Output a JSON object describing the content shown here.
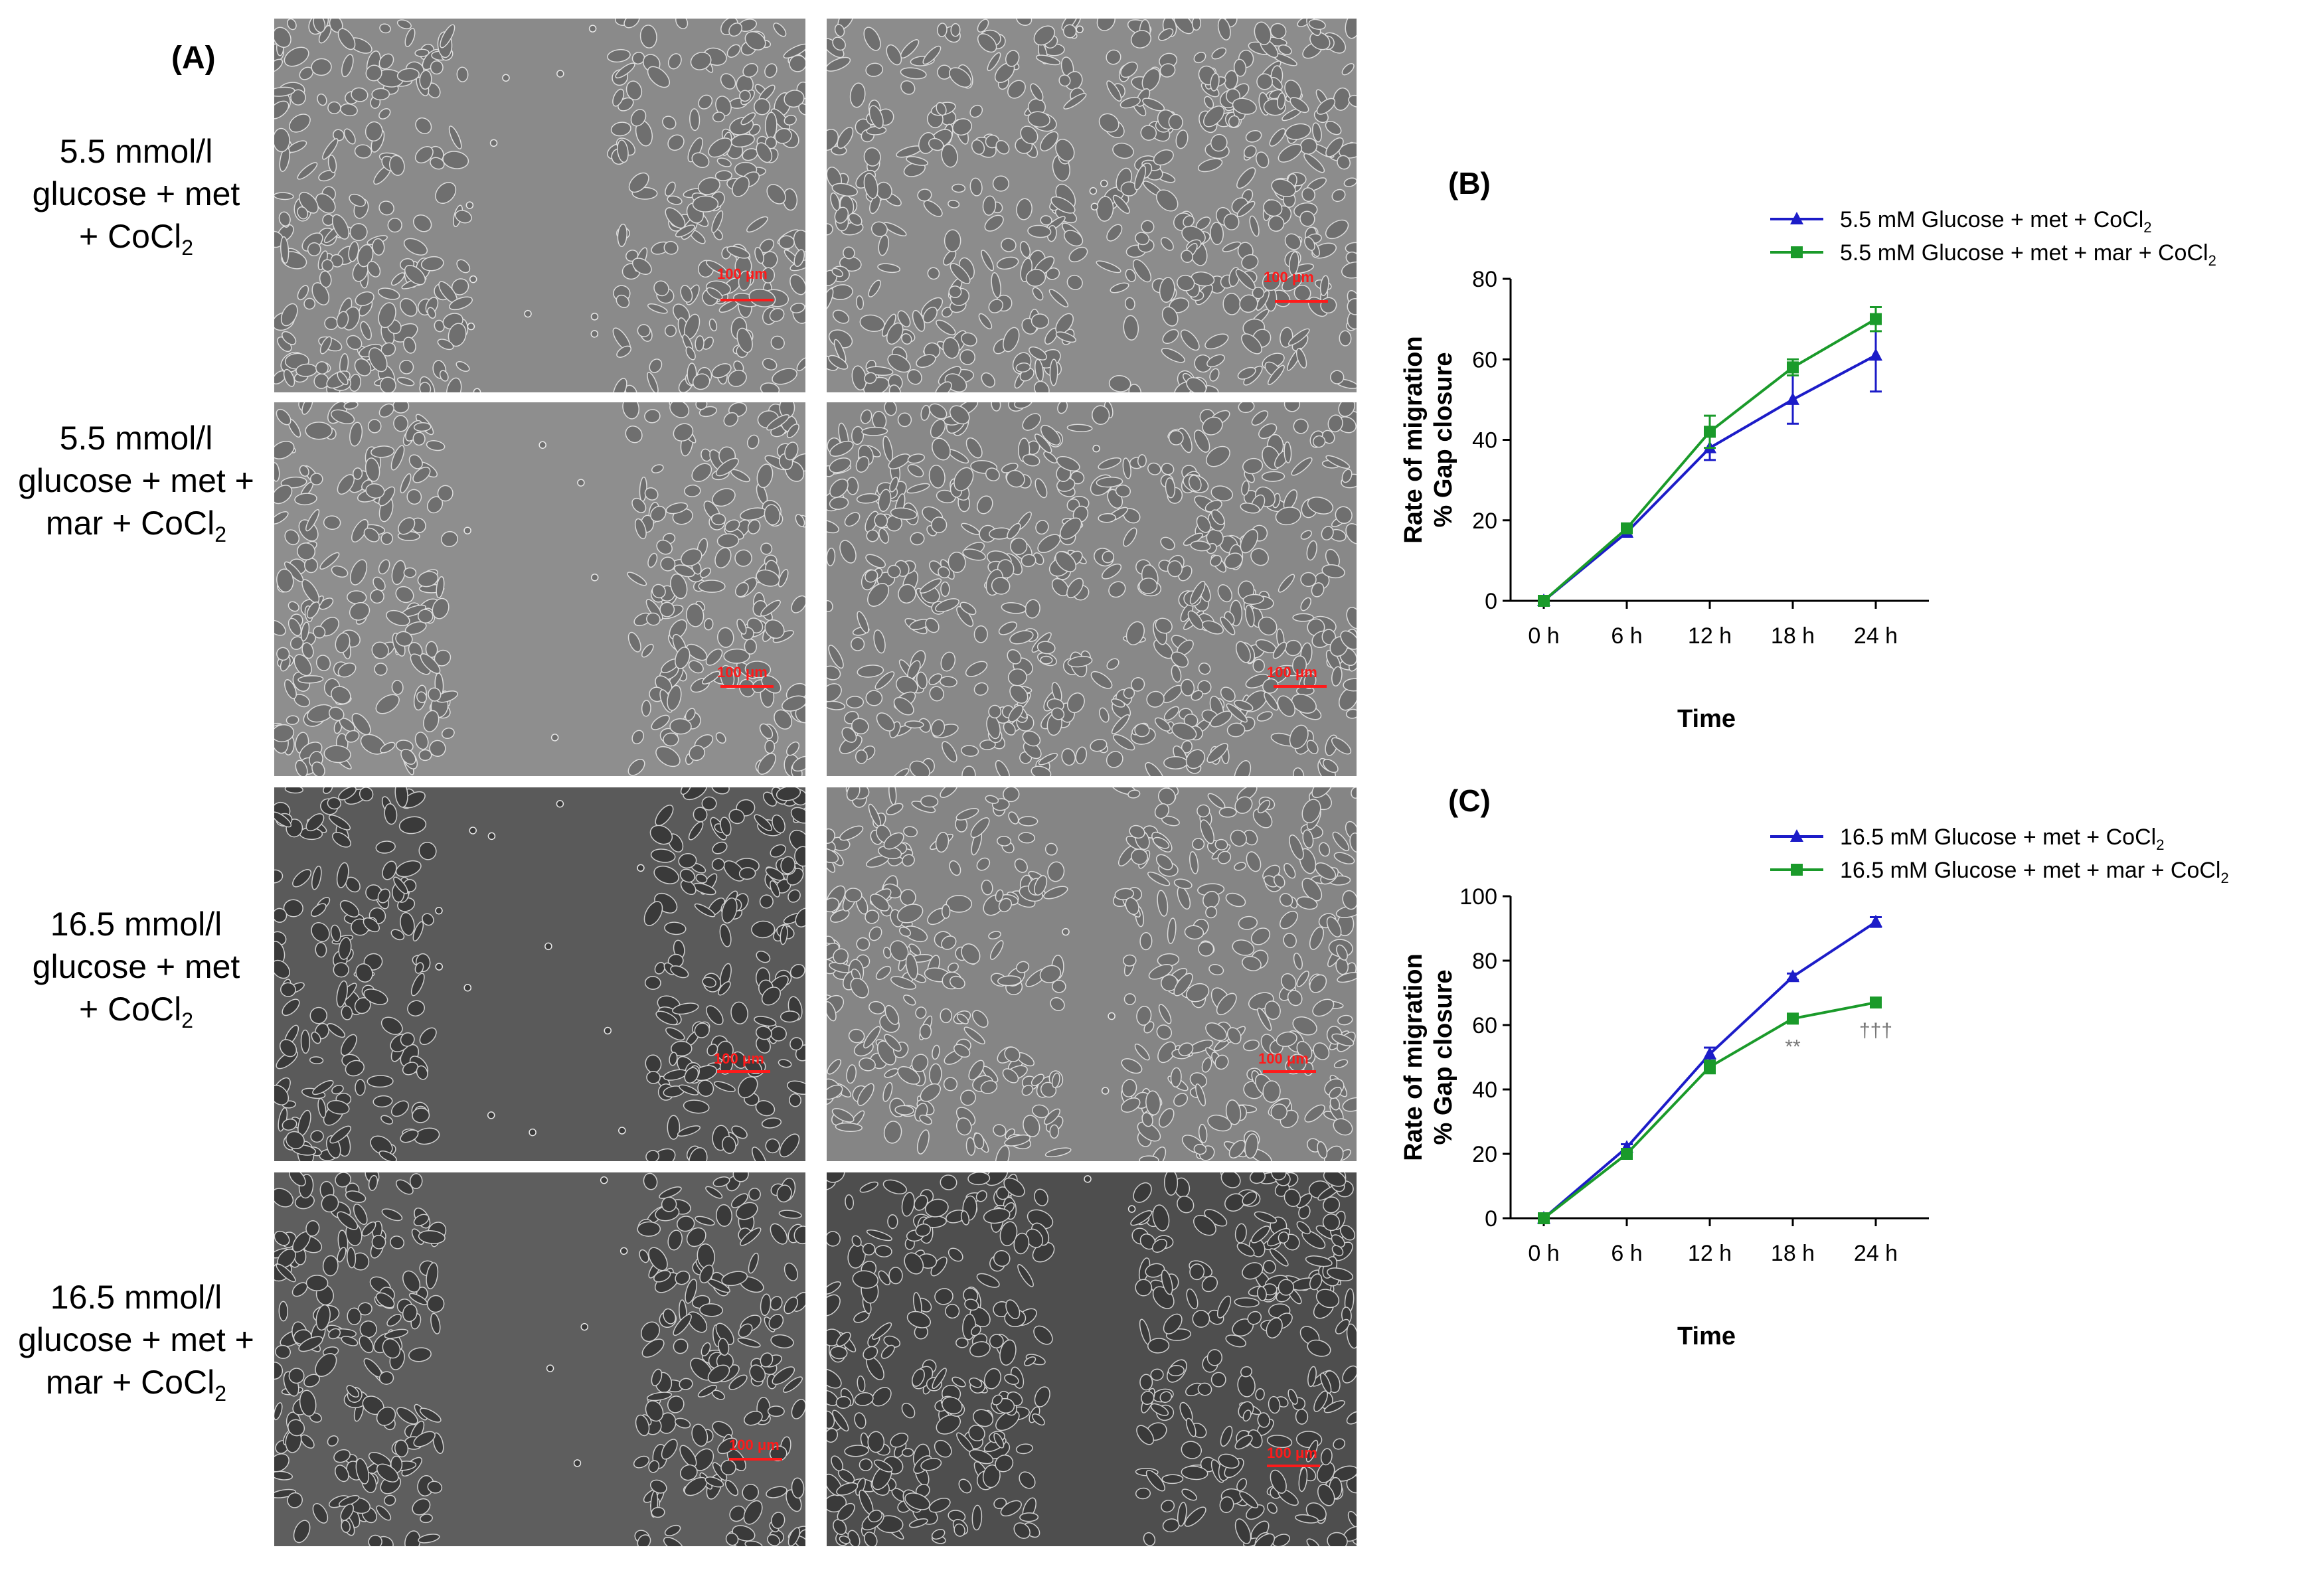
{
  "panel_a": {
    "label": "(A)",
    "rows": [
      {
        "line1": "5.5 mmol/l",
        "line2": "glucose + met",
        "line3": "+ CoCl",
        "sub": "2"
      },
      {
        "line1": "5.5 mmol/l",
        "line2": "glucose + met +",
        "line3": "mar + CoCl",
        "sub": "2"
      },
      {
        "line1": "16.5 mmol/l",
        "line2": "glucose + met",
        "line3": "+ CoCl",
        "sub": "2"
      },
      {
        "line1": "16.5 mmol/l",
        "line2": "glucose + met +",
        "line3": "mar + CoCl",
        "sub": "2"
      }
    ],
    "scale_bar_label": "100 μm"
  },
  "colors": {
    "blue": "#1c1cc8",
    "green": "#1a9a2a",
    "micro_bg": "#8b8b8b"
  },
  "chart_data": [
    {
      "panel": "(B)",
      "type": "line",
      "categories": [
        "0 h",
        "6 h",
        "12 h",
        "18 h",
        "24 h"
      ],
      "xlabel": "Time",
      "ylabel_line1": "Rate of migration",
      "ylabel_line2": "% Gap closure",
      "ylim": [
        0,
        80
      ],
      "yticks": [
        0,
        20,
        40,
        60,
        80
      ],
      "series": [
        {
          "name": "5.5 mM Glucose + met + CoCl",
          "sub": "2",
          "color": "#1c1cc8",
          "marker": "triangle",
          "values": [
            0,
            17,
            38,
            50,
            61
          ],
          "errors": [
            0,
            1,
            3,
            6,
            9
          ]
        },
        {
          "name": "5.5 mM Glucose + met + mar + CoCl",
          "sub": "2",
          "color": "#1a9a2a",
          "marker": "square",
          "values": [
            0,
            18,
            42,
            58,
            70
          ],
          "errors": [
            0,
            1,
            4,
            2,
            3
          ]
        }
      ],
      "annotations": []
    },
    {
      "panel": "(C)",
      "type": "line",
      "categories": [
        "0 h",
        "6 h",
        "12 h",
        "18 h",
        "24 h"
      ],
      "xlabel": "Time",
      "ylabel_line1": "Rate of migration",
      "ylabel_line2": "% Gap closure",
      "ylim": [
        0,
        100
      ],
      "yticks": [
        0,
        20,
        40,
        60,
        80,
        100
      ],
      "series": [
        {
          "name": "16.5 mM Glucose + met + CoCl",
          "sub": "2",
          "color": "#1c1cc8",
          "marker": "triangle",
          "values": [
            0,
            22,
            51,
            75,
            92
          ],
          "errors": [
            0,
            1,
            2,
            1,
            1.5
          ]
        },
        {
          "name": "16.5 mM Glucose + met + mar + CoCl",
          "sub": "2",
          "color": "#1a9a2a",
          "marker": "square",
          "values": [
            0,
            20,
            47,
            62,
            67
          ],
          "errors": [
            0,
            1,
            2,
            1.5,
            1.5
          ]
        }
      ],
      "annotations": [
        {
          "category": "18 h",
          "text": "**"
        },
        {
          "category": "24 h",
          "text": "†††"
        }
      ]
    }
  ]
}
